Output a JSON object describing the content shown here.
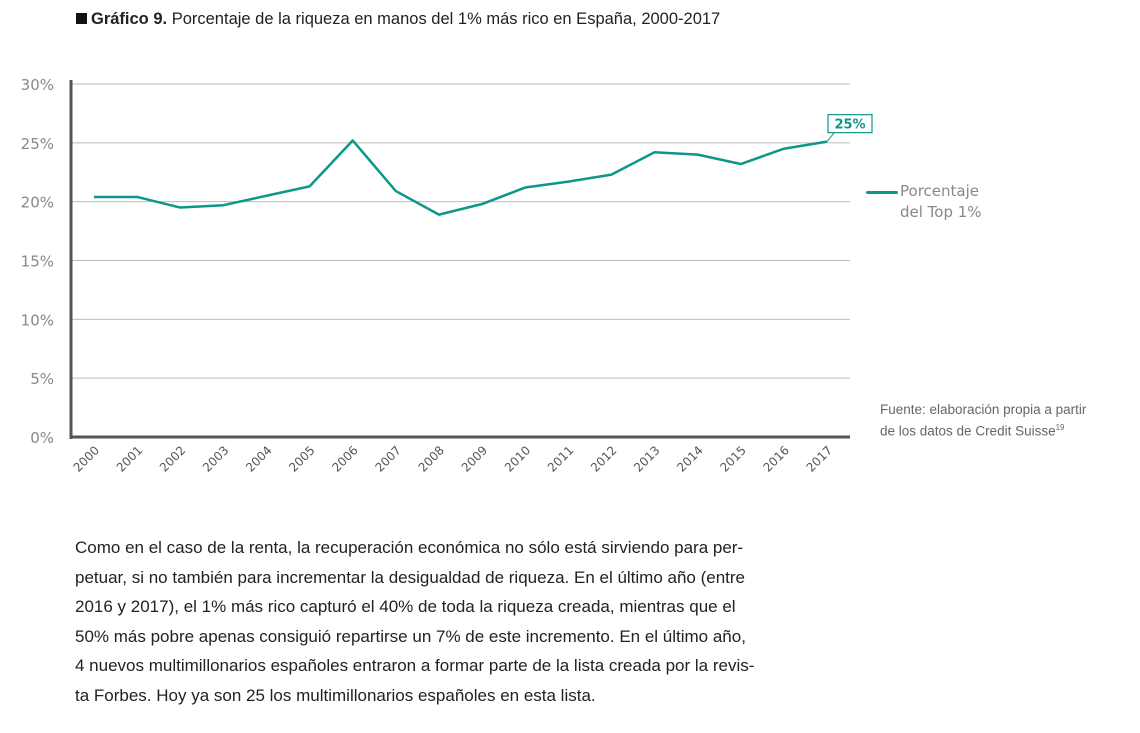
{
  "title": {
    "label": "Gráfico 9.",
    "text": " Porcentaje de la riqueza en manos del 1% más rico en España, 2000-2017"
  },
  "chart_data": {
    "type": "line",
    "categories": [
      "2000",
      "2001",
      "2002",
      "2003",
      "2004",
      "2005",
      "2006",
      "2007",
      "2008",
      "2009",
      "2010",
      "2011",
      "2012",
      "2013",
      "2014",
      "2015",
      "2016",
      "2017"
    ],
    "series": [
      {
        "name": "Porcentaje del Top 1%",
        "values": [
          20.4,
          20.4,
          19.5,
          19.7,
          20.5,
          21.3,
          25.2,
          20.9,
          18.9,
          19.8,
          21.2,
          21.7,
          22.3,
          24.2,
          24.0,
          23.2,
          24.5,
          25.1
        ],
        "color": "#0f968a"
      }
    ],
    "ylim": [
      0,
      30
    ],
    "yticks": [
      "0%",
      "5%",
      "10%",
      "15%",
      "20%",
      "25%",
      "30%"
    ],
    "grid": true,
    "legend": "right",
    "annotation": {
      "category": "2017",
      "text": "25%"
    }
  },
  "legend": {
    "line1": "Porcentaje",
    "line2": "del Top 1%"
  },
  "source": {
    "line1": "Fuente: elaboración propia a partir",
    "line2": "de los datos de Credit Suisse",
    "note": "19"
  },
  "body": {
    "lines": [
      "Como en el caso de la renta, la recuperación económica no sólo está sirviendo para per-",
      "petuar, si no también para incrementar la desigualdad de riqueza. En el último año (entre",
      "2016 y 2017), el 1% más rico capturó el 40% de toda la riqueza creada, mientras que el",
      "50% más pobre apenas consiguió repartirse un 7% de este incremento. En el último año,",
      "4 nuevos multimillonarios españoles entraron a formar parte de la lista creada por la revis-",
      "ta Forbes. Hoy ya son 25 los multimillonarios españoles en esta lista."
    ]
  }
}
